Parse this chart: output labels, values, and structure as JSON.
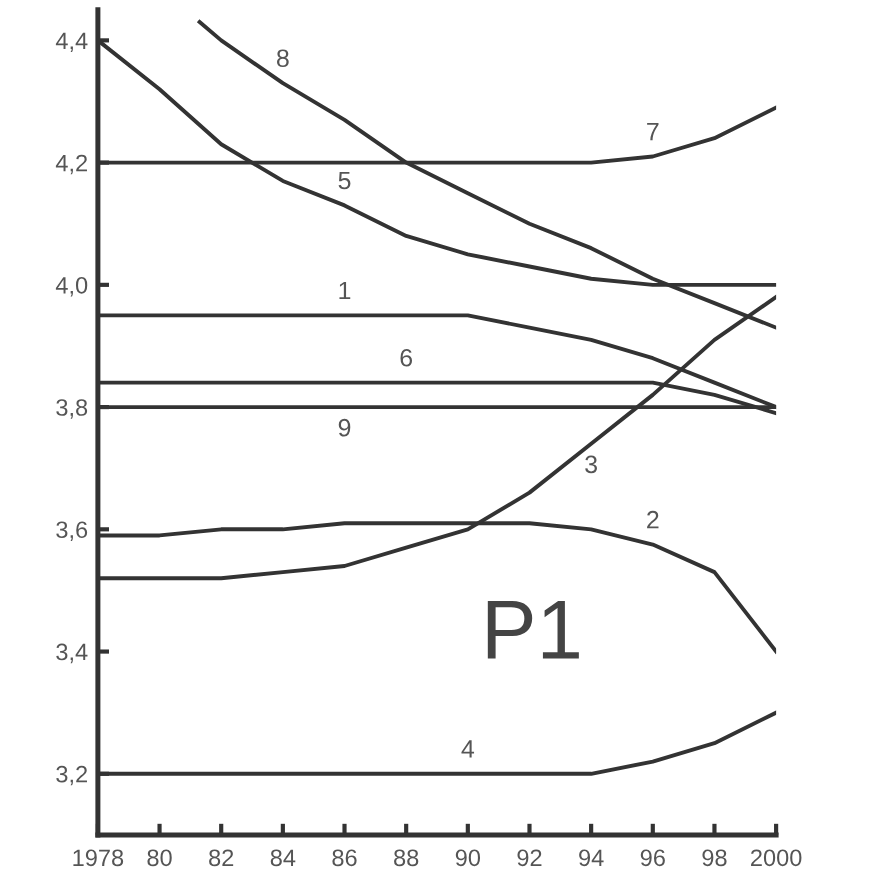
{
  "chart_data": {
    "type": "line",
    "x": [
      1978,
      1980,
      1982,
      1984,
      1986,
      1988,
      1990,
      1992,
      1994,
      1996,
      1998,
      2000
    ],
    "series": [
      {
        "color": "#333333",
        "values": [
          3.95,
          3.95,
          3.95,
          3.95,
          3.95,
          3.95,
          3.95,
          3.93,
          3.91,
          3.88,
          3.84,
          3.8
        ]
      },
      {
        "color": "#333333",
        "values": [
          3.59,
          3.59,
          3.6,
          3.6,
          3.61,
          3.61,
          3.61,
          3.61,
          3.6,
          3.575,
          3.53,
          3.4
        ]
      },
      {
        "color": "#333333",
        "values": [
          3.52,
          3.52,
          3.52,
          3.53,
          3.54,
          3.57,
          3.6,
          3.66,
          3.74,
          3.82,
          3.91,
          3.98
        ]
      },
      {
        "color": "#333333",
        "values": [
          3.2,
          3.2,
          3.2,
          3.2,
          3.2,
          3.2,
          3.2,
          3.2,
          3.2,
          3.22,
          3.25,
          3.3
        ]
      },
      {
        "color": "#333333",
        "values": [
          4.4,
          4.32,
          4.23,
          4.17,
          4.13,
          4.08,
          4.05,
          4.03,
          4.01,
          4.0,
          4.0,
          4.0
        ]
      },
      {
        "color": "#333333",
        "values": [
          3.84,
          3.84,
          3.84,
          3.84,
          3.84,
          3.84,
          3.84,
          3.84,
          3.84,
          3.84,
          3.82,
          3.79
        ]
      },
      {
        "color": "#333333",
        "values": [
          4.2,
          4.2,
          4.2,
          4.2,
          4.2,
          4.2,
          4.2,
          4.2,
          4.2,
          4.21,
          4.24,
          4.29
        ]
      },
      {
        "color": "#333333",
        "x": [
          1981.3,
          1982,
          1984,
          1986,
          1988,
          1990,
          1992,
          1994,
          1996,
          1998,
          2000
        ],
        "values": [
          4.43,
          4.4,
          4.33,
          4.27,
          4.2,
          4.15,
          4.1,
          4.06,
          4.01,
          3.97,
          3.93
        ]
      },
      {
        "color": "#333333",
        "values": [
          3.8,
          3.8,
          3.8,
          3.8,
          3.8,
          3.8,
          3.8,
          3.8,
          3.8,
          3.8,
          3.8,
          3.8
        ]
      }
    ],
    "annotations": [
      {
        "text": "1",
        "x": 1986,
        "y": 3.95
      },
      {
        "text": "2",
        "x": 1996,
        "y": 3.575
      },
      {
        "text": "3",
        "x": 1994,
        "y": 3.74
      },
      {
        "text": "4",
        "x": 1990,
        "y": 3.2
      },
      {
        "text": "5",
        "x": 1986,
        "y": 4.13
      },
      {
        "text": "6",
        "x": 1988,
        "y": 3.84
      },
      {
        "text": "7",
        "x": 1996,
        "y": 4.21
      },
      {
        "text": "8",
        "x": 1984,
        "y": 4.33
      },
      {
        "text": "9",
        "x": 1986,
        "y": 3.8
      },
      "P1"
    ],
    "xlim": [
      1978,
      2000
    ],
    "ylim": [
      3.1,
      4.45
    ],
    "xticks": [
      1978,
      {
        "value": 1980,
        "label": "80"
      },
      {
        "value": 1982,
        "label": "82"
      },
      {
        "value": 1984,
        "label": "84"
      },
      {
        "value": 1986,
        "label": "86"
      },
      {
        "value": 1988,
        "label": "88"
      },
      {
        "value": 1990,
        "label": "90"
      },
      {
        "value": 1992,
        "label": "92"
      },
      {
        "value": 1994,
        "label": "94"
      },
      {
        "value": 1996,
        "label": "96"
      },
      {
        "value": 1998,
        "label": "98"
      },
      2000
    ],
    "yticks": [
      {
        "value": 3.2,
        "label": "3,2"
      },
      {
        "value": 3.4,
        "label": "3,4"
      },
      {
        "value": 3.6,
        "label": "3,6"
      },
      {
        "value": 3.8,
        "label": "3,8"
      },
      {
        "value": 4.0,
        "label": "4,0"
      },
      {
        "value": 4.2,
        "label": "4,2"
      },
      {
        "value": 4.4,
        "label": "4,4"
      }
    ],
    "grid": false,
    "marker": "none",
    "line_style": "solid"
  }
}
